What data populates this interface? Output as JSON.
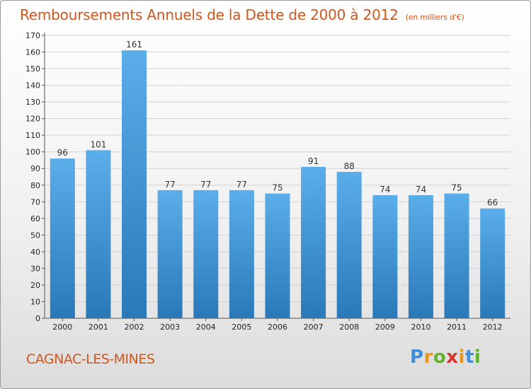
{
  "chart_data": {
    "type": "bar",
    "title": "Remboursements Annuels de la Dette de 2000 à 2012",
    "subtitle": "(en milliers d'€)",
    "categories": [
      "2000",
      "2001",
      "2002",
      "2003",
      "2004",
      "2005",
      "2006",
      "2007",
      "2008",
      "2009",
      "2010",
      "2011",
      "2012"
    ],
    "values": [
      96,
      101,
      161,
      77,
      77,
      77,
      75,
      91,
      88,
      74,
      74,
      75,
      66
    ],
    "ylim": [
      0,
      170
    ],
    "yticks": [
      0,
      10,
      20,
      30,
      40,
      50,
      60,
      70,
      80,
      90,
      100,
      110,
      120,
      130,
      140,
      150,
      160,
      170
    ],
    "grid": true,
    "legend": "none",
    "colors": {
      "bar_light": "#5aaeea",
      "bar_dark": "#2a78b8",
      "title": "#d0561c"
    }
  },
  "footer": {
    "town": "CAGNAC-LES-MINES",
    "logo_letters": [
      "P",
      "r",
      "o",
      "x",
      "i",
      "t",
      "i"
    ],
    "logo_colors": [
      "#3c8fd8",
      "#e8961c",
      "#62b42f",
      "#d8342c",
      "#e8961c",
      "#3c8fd8",
      "#62b42f"
    ]
  }
}
